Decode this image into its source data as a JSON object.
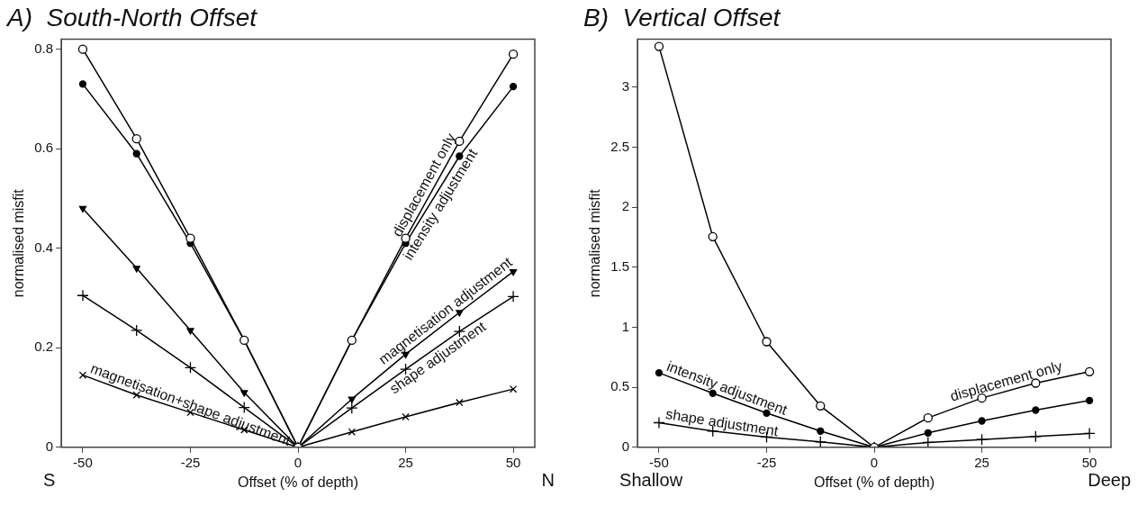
{
  "chart_data": [
    {
      "type": "line",
      "title": "A)  South-North Offset",
      "xlabel": "Offset (% of depth)",
      "ylabel": "normalised misfit",
      "x": [
        -50,
        -37.5,
        -25,
        -12.5,
        0,
        12.5,
        25,
        37.5,
        50
      ],
      "xlim": [
        -55,
        55
      ],
      "xticks": [
        -50,
        -25,
        0,
        25,
        50
      ],
      "ylim": [
        0,
        0.82
      ],
      "yticks": [
        0,
        0.2,
        0.4,
        0.6,
        0.8
      ],
      "grid": false,
      "legend": false,
      "line_style": "solid",
      "annotations": [
        "S",
        "N"
      ],
      "series": [
        {
          "name": "displacement only",
          "color": "#000000",
          "marker": "circle",
          "values": [
            0.8,
            0.62,
            0.42,
            0.215,
            0,
            0.215,
            0.42,
            0.615,
            0.79
          ]
        },
        {
          "name": "intensity adjustment",
          "color": "#000000",
          "marker": "dot",
          "values": [
            0.73,
            0.59,
            0.41,
            0.215,
            0,
            0.215,
            0.41,
            0.585,
            0.725
          ]
        },
        {
          "name": "magnetisation adjustment",
          "color": "#000000",
          "marker": "triangle",
          "values": [
            0.48,
            0.36,
            0.235,
            0.11,
            0,
            0.097,
            0.187,
            0.271,
            0.353
          ]
        },
        {
          "name": "shape adjustment",
          "color": "#000000",
          "marker": "cross",
          "values": [
            0.305,
            0.235,
            0.16,
            0.08,
            0,
            0.079,
            0.157,
            0.233,
            0.303
          ]
        },
        {
          "name": "magnetisation+shape adjustment",
          "color": "#000000",
          "marker": "x",
          "values": [
            0.145,
            0.105,
            0.07,
            0.035,
            0,
            0.031,
            0.061,
            0.09,
            0.117
          ]
        }
      ]
    },
    {
      "type": "line",
      "title": "B)  Vertical Offset",
      "xlabel": "Offset (% of depth)",
      "ylabel": "normalised misfit",
      "x": [
        -50,
        -37.5,
        -25,
        -12.5,
        0,
        12.5,
        25,
        37.5,
        50
      ],
      "xlim": [
        -55,
        55
      ],
      "xticks": [
        -50,
        -25,
        0,
        25,
        50
      ],
      "ylim": [
        0,
        3.4
      ],
      "yticks": [
        0,
        0.5,
        1,
        1.5,
        2,
        2.5,
        3
      ],
      "grid": false,
      "legend": false,
      "line_style": "solid",
      "annotations": [
        "Shallow",
        "Deep"
      ],
      "series": [
        {
          "name": "displacement only",
          "color": "#000000",
          "marker": "circle",
          "values": [
            3.34,
            1.755,
            0.88,
            0.345,
            0,
            0.245,
            0.41,
            0.535,
            0.63
          ]
        },
        {
          "name": "intensity adjustment",
          "color": "#000000",
          "marker": "dot",
          "values": [
            0.62,
            0.45,
            0.285,
            0.135,
            0,
            0.12,
            0.22,
            0.31,
            0.39
          ]
        },
        {
          "name": "shape adjustment",
          "color": "#000000",
          "marker": "cross",
          "values": [
            0.205,
            0.135,
            0.085,
            0.045,
            0,
            0.04,
            0.065,
            0.09,
            0.115
          ]
        }
      ]
    }
  ]
}
